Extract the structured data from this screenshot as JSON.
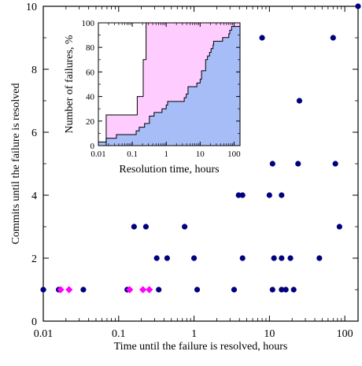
{
  "chart_data": [
    {
      "type": "scatter",
      "xlabel": "Time until the failure is resolved, hours",
      "ylabel": "Commits until the failure is resolved",
      "xscale": "log",
      "xlim": [
        0.01,
        150
      ],
      "ylim": [
        0,
        10
      ],
      "xticks": [
        {
          "value": 0.01,
          "label": "0.01"
        },
        {
          "value": 0.1,
          "label": "0.1"
        },
        {
          "value": 1,
          "label": "1"
        },
        {
          "value": 10,
          "label": "10"
        },
        {
          "value": 100,
          "label": "100"
        }
      ],
      "yticks": [
        {
          "value": 0,
          "label": "0"
        },
        {
          "value": 2,
          "label": "2"
        },
        {
          "value": 4,
          "label": "4"
        },
        {
          "value": 6,
          "label": "6"
        },
        {
          "value": 8,
          "label": "8"
        },
        {
          "value": 10,
          "label": "10"
        }
      ],
      "grid": false,
      "series": [
        {
          "marker": "circle",
          "color": "#00007f",
          "points": [
            {
              "x": 0.01,
              "y": 1
            },
            {
              "x": 0.016,
              "y": 1
            },
            {
              "x": 0.034,
              "y": 1
            },
            {
              "x": 0.13,
              "y": 1
            },
            {
              "x": 0.34,
              "y": 1
            },
            {
              "x": 1.1,
              "y": 1
            },
            {
              "x": 3.4,
              "y": 1
            },
            {
              "x": 11,
              "y": 1
            },
            {
              "x": 14.5,
              "y": 1
            },
            {
              "x": 16.5,
              "y": 1
            },
            {
              "x": 21,
              "y": 1
            },
            {
              "x": 0.32,
              "y": 2
            },
            {
              "x": 0.44,
              "y": 2
            },
            {
              "x": 1,
              "y": 2
            },
            {
              "x": 4.4,
              "y": 2
            },
            {
              "x": 11.5,
              "y": 2
            },
            {
              "x": 14.5,
              "y": 2
            },
            {
              "x": 19,
              "y": 2
            },
            {
              "x": 46,
              "y": 2
            },
            {
              "x": 0.16,
              "y": 3
            },
            {
              "x": 0.23,
              "y": 3
            },
            {
              "x": 0.75,
              "y": 3
            },
            {
              "x": 85,
              "y": 3
            },
            {
              "x": 3.9,
              "y": 4
            },
            {
              "x": 4.4,
              "y": 4
            },
            {
              "x": 10,
              "y": 4
            },
            {
              "x": 14.5,
              "y": 4
            },
            {
              "x": 11,
              "y": 5
            },
            {
              "x": 24,
              "y": 5
            },
            {
              "x": 75,
              "y": 5
            },
            {
              "x": 25,
              "y": 7
            },
            {
              "x": 8,
              "y": 9
            },
            {
              "x": 70,
              "y": 9
            },
            {
              "x": 150,
              "y": 10
            }
          ]
        },
        {
          "marker": "diamond",
          "color": "#ff00ff",
          "points": [
            {
              "x": 0.017,
              "y": 1
            },
            {
              "x": 0.022,
              "y": 1
            },
            {
              "x": 0.14,
              "y": 1
            },
            {
              "x": 0.21,
              "y": 1
            },
            {
              "x": 0.255,
              "y": 1
            }
          ]
        }
      ]
    },
    {
      "type": "area",
      "xlabel": "Resolution time, hours",
      "ylabel": "Number of failures, %",
      "xscale": "log",
      "xlim": [
        0.01,
        150
      ],
      "ylim": [
        0,
        100
      ],
      "xticks": [
        {
          "value": 0.01,
          "label": "0.01"
        },
        {
          "value": 0.1,
          "label": "0.1"
        },
        {
          "value": 1,
          "label": "1"
        },
        {
          "value": 10,
          "label": "10"
        },
        {
          "value": 100,
          "label": "100"
        }
      ],
      "yticks": [
        {
          "value": 0,
          "label": "0"
        },
        {
          "value": 20,
          "label": "20"
        },
        {
          "value": 40,
          "label": "40"
        },
        {
          "value": 60,
          "label": "60"
        },
        {
          "value": 80,
          "label": "80"
        },
        {
          "value": 100,
          "label": "100"
        }
      ],
      "grid": false,
      "series": [
        {
          "color": "#ffccff",
          "points": [
            {
              "x": 0.01,
              "y": 0
            },
            {
              "x": 0.017,
              "y": 0
            },
            {
              "x": 0.017,
              "y": 25
            },
            {
              "x": 0.14,
              "y": 25
            },
            {
              "x": 0.14,
              "y": 40
            },
            {
              "x": 0.21,
              "y": 40
            },
            {
              "x": 0.21,
              "y": 70
            },
            {
              "x": 0.255,
              "y": 70
            },
            {
              "x": 0.255,
              "y": 100
            },
            {
              "x": 150,
              "y": 100
            }
          ]
        },
        {
          "color": "#a6bdf7",
          "points": [
            {
              "x": 0.01,
              "y": 0
            },
            {
              "x": 0.01,
              "y": 3
            },
            {
              "x": 0.017,
              "y": 3
            },
            {
              "x": 0.017,
              "y": 6
            },
            {
              "x": 0.034,
              "y": 6
            },
            {
              "x": 0.034,
              "y": 9
            },
            {
              "x": 0.13,
              "y": 9
            },
            {
              "x": 0.13,
              "y": 12
            },
            {
              "x": 0.16,
              "y": 12
            },
            {
              "x": 0.16,
              "y": 15
            },
            {
              "x": 0.23,
              "y": 15
            },
            {
              "x": 0.23,
              "y": 18
            },
            {
              "x": 0.32,
              "y": 18
            },
            {
              "x": 0.32,
              "y": 24
            },
            {
              "x": 0.44,
              "y": 24
            },
            {
              "x": 0.44,
              "y": 27
            },
            {
              "x": 0.75,
              "y": 27
            },
            {
              "x": 0.75,
              "y": 30
            },
            {
              "x": 1,
              "y": 30
            },
            {
              "x": 1,
              "y": 33
            },
            {
              "x": 1.1,
              "y": 33
            },
            {
              "x": 1.1,
              "y": 36
            },
            {
              "x": 3.4,
              "y": 36
            },
            {
              "x": 3.4,
              "y": 39
            },
            {
              "x": 3.9,
              "y": 39
            },
            {
              "x": 3.9,
              "y": 42
            },
            {
              "x": 4.4,
              "y": 42
            },
            {
              "x": 4.4,
              "y": 48
            },
            {
              "x": 8,
              "y": 48
            },
            {
              "x": 8,
              "y": 51
            },
            {
              "x": 10,
              "y": 51
            },
            {
              "x": 10,
              "y": 54
            },
            {
              "x": 11,
              "y": 54
            },
            {
              "x": 11,
              "y": 61
            },
            {
              "x": 14.5,
              "y": 61
            },
            {
              "x": 14.5,
              "y": 70
            },
            {
              "x": 16.5,
              "y": 70
            },
            {
              "x": 16.5,
              "y": 73
            },
            {
              "x": 19,
              "y": 73
            },
            {
              "x": 19,
              "y": 76
            },
            {
              "x": 21,
              "y": 76
            },
            {
              "x": 21,
              "y": 79
            },
            {
              "x": 24,
              "y": 79
            },
            {
              "x": 24,
              "y": 82
            },
            {
              "x": 25,
              "y": 82
            },
            {
              "x": 25,
              "y": 85
            },
            {
              "x": 46,
              "y": 85
            },
            {
              "x": 46,
              "y": 88
            },
            {
              "x": 70,
              "y": 88
            },
            {
              "x": 70,
              "y": 91
            },
            {
              "x": 75,
              "y": 91
            },
            {
              "x": 75,
              "y": 94
            },
            {
              "x": 85,
              "y": 94
            },
            {
              "x": 85,
              "y": 97
            },
            {
              "x": 150,
              "y": 97
            },
            {
              "x": 150,
              "y": 100
            },
            {
              "x": 150,
              "y": 0
            }
          ]
        }
      ]
    }
  ]
}
